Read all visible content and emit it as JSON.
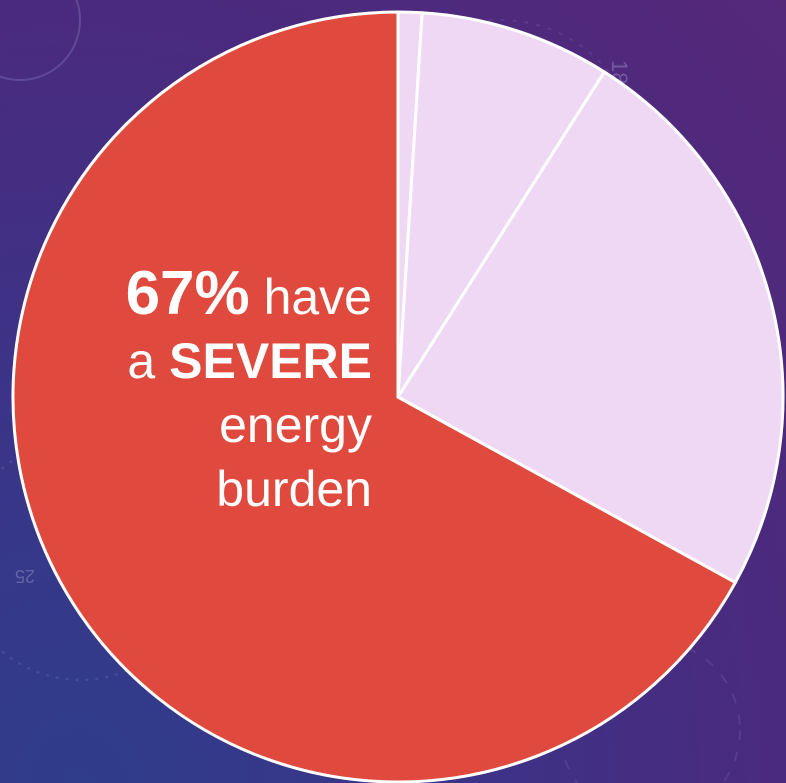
{
  "chart_data": {
    "type": "pie",
    "slices": [
      {
        "value": 67,
        "color": "#e04a3e"
      },
      {
        "value": 1,
        "color": "#efd8f3"
      },
      {
        "value": 8,
        "color": "#efd8f3"
      },
      {
        "value": 24,
        "color": "#efd8f3"
      }
    ],
    "annotation": {
      "percent": "67%",
      "word_have": "have",
      "word_a": "a",
      "word_severe": "SEVERE",
      "word_energy": "energy",
      "word_burden": "burden"
    }
  },
  "colors": {
    "highlight": "#e04a3e",
    "other": "#efd8f3",
    "background": "#3b3488"
  },
  "background_decor": {
    "numbers": [
      "180",
      "25"
    ]
  }
}
